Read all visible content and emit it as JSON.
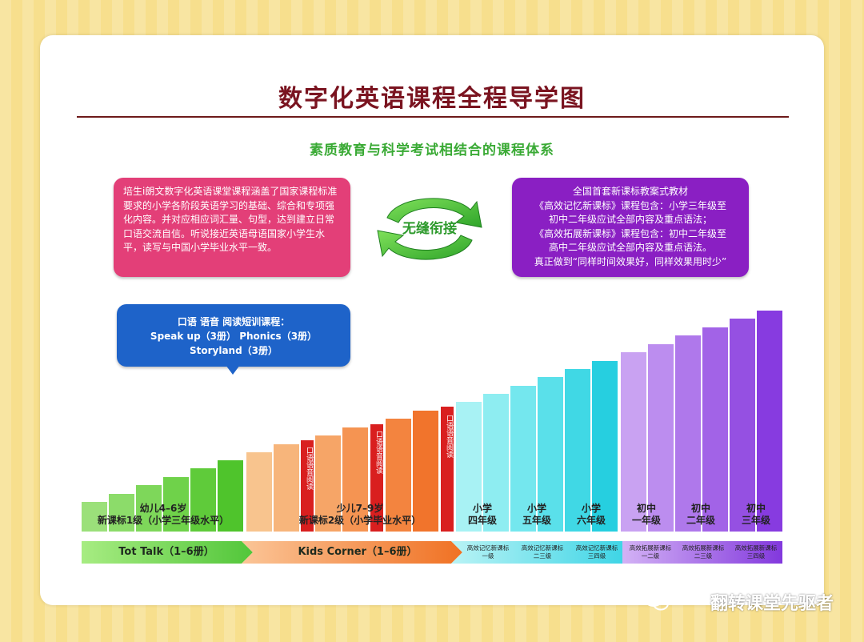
{
  "title": "数字化英语课程全程导学图",
  "subtitle": "素质教育与科学考试相结合的课程体系",
  "left_box": {
    "text": "培生i朗文数字化英语课堂课程涵盖了国家课程标准要求的小学各阶段英语学习的基础、综合和专项强化内容。并对应相应词汇量、句型，达到建立日常口语交流自信。听说接近英语母语国家小学生水平，读写与中国小学毕业水平一致。"
  },
  "right_box": {
    "lines": [
      "全国首套新课标教案式教材",
      "《高效记忆新课标》课程包含：小学三年级至",
      "初中二年级应试全部内容及重点语法；",
      "《高效拓展新课标》课程包含：初中二年级至",
      "高中二年级应试全部内容及重点语法。",
      "真正做到“同样时间效果好，同样效果用时少”"
    ]
  },
  "center_cycle": {
    "label": "无缝衔接",
    "icon": "recycle-arrows-icon"
  },
  "blue_box": {
    "lines": [
      "口语 语音 阅读短训课程：",
      "Speak up（3册）    Phonics（3册）",
      "Storyland（3册）"
    ]
  },
  "levels": [
    {
      "lines": [
        "幼儿4–6岁",
        "新课标1级（小学三年级水平）"
      ]
    },
    {
      "lines": [
        "少儿7–9岁",
        "新课标2级（小学毕业水平）"
      ]
    },
    {
      "lines": [
        "小学",
        "四年级"
      ]
    },
    {
      "lines": [
        "小学",
        "五年级"
      ]
    },
    {
      "lines": [
        "小学",
        "六年级"
      ]
    },
    {
      "lines": [
        "初中",
        "一年级"
      ]
    },
    {
      "lines": [
        "初中",
        "二年级"
      ]
    },
    {
      "lines": [
        "初中",
        "三年级"
      ]
    }
  ],
  "red_tags": [
    "口语语音阅读",
    "口语语音阅读",
    "口语语音阅读"
  ],
  "bands": {
    "tot_talk": "Tot Talk（1–6册）",
    "kids_corner": "Kids Corner（1–6册）",
    "small": [
      {
        "lines": [
          "高效记忆新课标",
          "一级"
        ]
      },
      {
        "lines": [
          "高效记忆新课标",
          "二三级"
        ]
      },
      {
        "lines": [
          "高效记忆新课标",
          "三四级"
        ]
      },
      {
        "lines": [
          "高效拓展新课标",
          "一二级"
        ]
      },
      {
        "lines": [
          "高效拓展新课标",
          "二三级"
        ]
      },
      {
        "lines": [
          "高效拓展新课标",
          "三四级"
        ]
      }
    ]
  },
  "bar_colors": {
    "green": [
      "#9be07a",
      "#8cdc6a",
      "#7ed75a",
      "#6fd24a",
      "#5fcb3a",
      "#4fc42c"
    ],
    "orange": [
      "#f8c48e",
      "#f7b57b",
      "#f6a567",
      "#f59452",
      "#f3843f",
      "#f1742c",
      "#ef641a"
    ],
    "red": "#d91f1f",
    "cyan": [
      "#a8f2f4",
      "#8eedf1",
      "#74e7ee",
      "#5ae0ea",
      "#40d8e5",
      "#26cfe0"
    ],
    "purple": [
      "#c9a2f2",
      "#bc8def",
      "#af78eb",
      "#a263e7",
      "#9550e2",
      "#873be0",
      "#7a26db"
    ]
  },
  "watermark": "翻转课堂先驱者"
}
